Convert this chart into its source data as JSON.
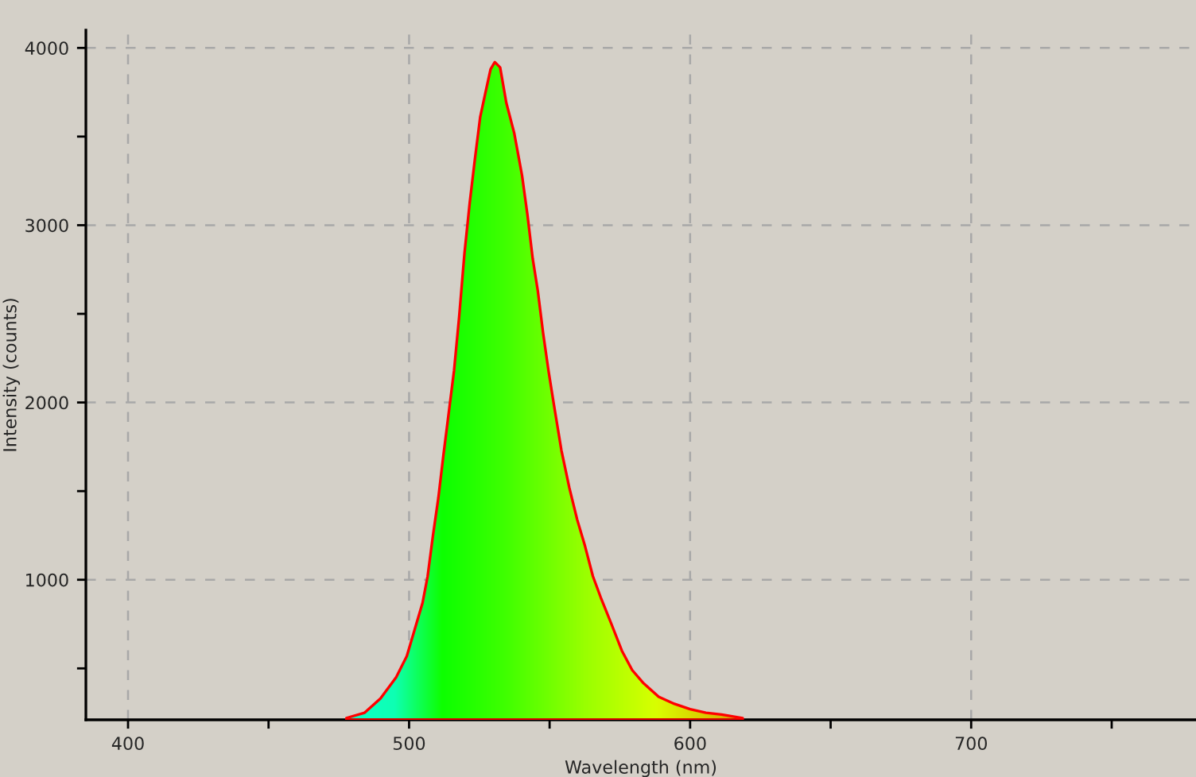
{
  "chart_data": {
    "type": "area",
    "xlabel": "Wavelength (nm)",
    "ylabel": "Intensity (counts)",
    "x": [
      477.7,
      484.2,
      489.8,
      495.4,
      499.2,
      502,
      504.8,
      506.6,
      508.5,
      510.4,
      512.2,
      514.1,
      516,
      517.8,
      519.7,
      521.6,
      523.4,
      525.3,
      527.2,
      529,
      530.5,
      532.4,
      534.6,
      537.4,
      540.2,
      542.1,
      544,
      545.8,
      547.7,
      549.6,
      551.4,
      554.2,
      557,
      559.8,
      562.6,
      565.4,
      568.2,
      572,
      575.7,
      579.4,
      583.2,
      588.8,
      594.4,
      600,
      605.6,
      611.2,
      618.7
    ],
    "series": [
      {
        "color": "#ff0000",
        "values": [
          220,
          250,
          330,
          450,
          570,
          720,
          870,
          1020,
          1250,
          1460,
          1700,
          1940,
          2180,
          2480,
          2840,
          3130,
          3370,
          3610,
          3750,
          3880,
          3920,
          3890,
          3690,
          3520,
          3280,
          3060,
          2810,
          2630,
          2390,
          2180,
          2000,
          1730,
          1520,
          1340,
          1190,
          1020,
          900,
          750,
          600,
          490,
          420,
          340,
          300,
          270,
          250,
          240,
          220
        ]
      }
    ],
    "xlim": [
      385,
      780
    ],
    "ylim": [
      210,
      4100
    ],
    "xticks": [
      400,
      {
        "value": 450,
        "label": null
      },
      500,
      {
        "value": 550,
        "label": null
      },
      600,
      {
        "value": 650,
        "label": null
      },
      700,
      {
        "value": 750,
        "label": null
      }
    ],
    "yticks": [
      {
        "value": 500,
        "label": null
      },
      1000,
      {
        "value": 1500,
        "label": null
      },
      2000,
      {
        "value": 2500,
        "label": null
      },
      3000,
      {
        "value": 3500,
        "label": null
      },
      4000
    ],
    "grid": true
  }
}
